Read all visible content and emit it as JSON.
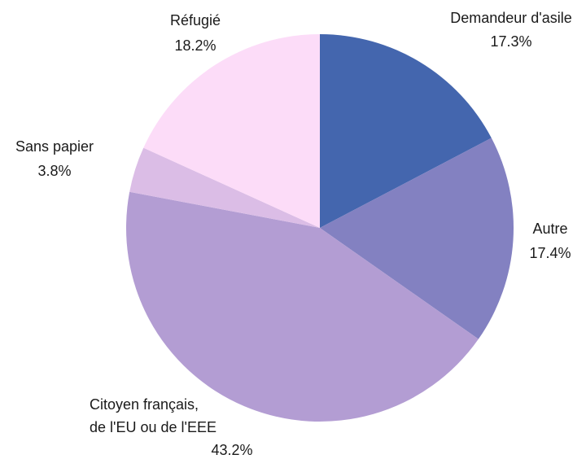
{
  "chart_data": {
    "type": "pie",
    "categories": [
      "Demandeur d'asile",
      "Autre",
      "Citoyen français,\nde l'EU ou de l'EEE",
      "Sans papier",
      "Réfugié"
    ],
    "values": [
      17.3,
      17.4,
      43.2,
      3.8,
      18.2
    ],
    "value_labels": [
      "17.3%",
      "17.4%",
      "43.2%",
      "3.8%",
      "18.2%"
    ],
    "colors": [
      "#4466ae",
      "#8381c1",
      "#b39dd3",
      "#dbbde6",
      "#fcdcf8"
    ]
  }
}
